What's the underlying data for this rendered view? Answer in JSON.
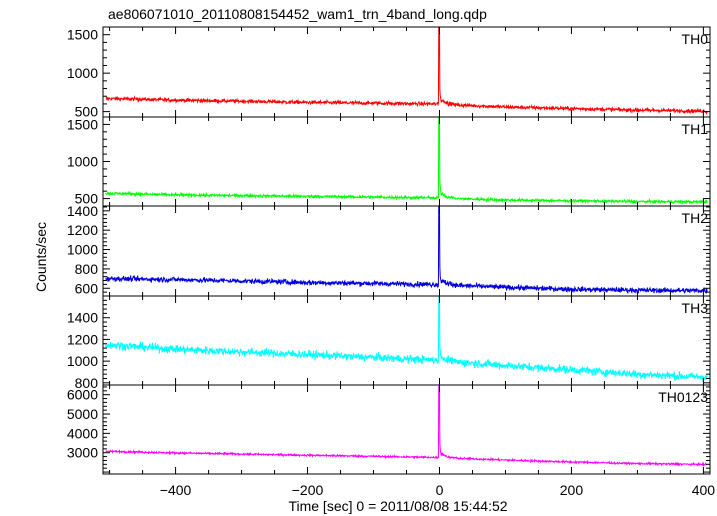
{
  "chart_data": {
    "type": "line",
    "title": "ae806071010_20110808154452_wam1_trn_4band_long.qdp",
    "xlabel": "Time [sec] 0 = 2011/08/08 15:44:52",
    "ylabel": "Counts/sec",
    "xlim": [
      -510,
      410
    ],
    "x_ticks": [
      -400,
      -200,
      0,
      200,
      400
    ],
    "x_tick_labels": [
      "−400",
      "−200",
      "0",
      "200",
      "400"
    ],
    "grid": false,
    "panels": [
      {
        "name": "TH0",
        "color": "#ff0000",
        "ylim": [
          430,
          1600
        ],
        "y_ticks": [
          500,
          1000,
          1500
        ],
        "baseline": [
          [
            -500,
            670
          ],
          [
            -400,
            650
          ],
          [
            -200,
            620
          ],
          [
            -10,
            600
          ],
          [
            100,
            560
          ],
          [
            200,
            540
          ],
          [
            300,
            520
          ],
          [
            410,
            505
          ]
        ],
        "noise": 22,
        "peak": 1600,
        "series": [
          {
            "x": [
              -500,
              -400,
              -200,
              -10,
              0,
              5,
              100,
              200,
              300,
              410
            ],
            "y": [
              670,
              650,
              620,
              600,
              1600,
              650,
              560,
              540,
              520,
              505
            ]
          }
        ]
      },
      {
        "name": "TH1",
        "color": "#00ff00",
        "ylim": [
          400,
          1600
        ],
        "y_ticks": [
          500,
          1000,
          1500
        ],
        "baseline": [
          [
            -500,
            570
          ],
          [
            -400,
            550
          ],
          [
            -200,
            530
          ],
          [
            -10,
            510
          ],
          [
            100,
            480
          ],
          [
            200,
            470
          ],
          [
            300,
            460
          ],
          [
            410,
            455
          ]
        ],
        "noise": 18,
        "peak": 1600,
        "series": [
          {
            "x": [
              -500,
              -400,
              -200,
              -10,
              0,
              5,
              100,
              200,
              300,
              410
            ],
            "y": [
              570,
              550,
              530,
              510,
              1600,
              560,
              480,
              470,
              460,
              455
            ]
          }
        ]
      },
      {
        "name": "TH2",
        "color": "#0000dd",
        "ylim": [
          520,
          1450
        ],
        "y_ticks": [
          600,
          800,
          1000,
          1200,
          1400
        ],
        "baseline": [
          [
            -500,
            700
          ],
          [
            -400,
            690
          ],
          [
            -200,
            660
          ],
          [
            -10,
            640
          ],
          [
            100,
            610
          ],
          [
            200,
            590
          ],
          [
            300,
            580
          ],
          [
            410,
            575
          ]
        ],
        "noise": 25,
        "peak": 1450,
        "series": [
          {
            "x": [
              -500,
              -400,
              -200,
              -10,
              0,
              5,
              100,
              200,
              300,
              410
            ],
            "y": [
              700,
              690,
              660,
              640,
              1450,
              700,
              610,
              590,
              580,
              575
            ]
          }
        ]
      },
      {
        "name": "TH3",
        "color": "#00ffff",
        "ylim": [
          780,
          1600
        ],
        "y_ticks": [
          800,
          1000,
          1200,
          1400
        ],
        "baseline": [
          [
            -500,
            1150
          ],
          [
            -400,
            1110
          ],
          [
            -200,
            1060
          ],
          [
            -10,
            1010
          ],
          [
            100,
            960
          ],
          [
            200,
            920
          ],
          [
            300,
            880
          ],
          [
            410,
            850
          ]
        ],
        "noise": 35,
        "peak": 1600,
        "series": [
          {
            "x": [
              -500,
              -400,
              -200,
              -10,
              0,
              5,
              100,
              200,
              300,
              410
            ],
            "y": [
              1150,
              1110,
              1060,
              1010,
              1600,
              1040,
              960,
              920,
              880,
              850
            ]
          }
        ]
      },
      {
        "name": "TH0123",
        "color": "#ff00ff",
        "ylim": [
          1900,
          6500
        ],
        "y_ticks": [
          3000,
          4000,
          5000,
          6000
        ],
        "baseline": [
          [
            -500,
            3070
          ],
          [
            -400,
            2990
          ],
          [
            -200,
            2870
          ],
          [
            -10,
            2760
          ],
          [
            100,
            2620
          ],
          [
            200,
            2520
          ],
          [
            300,
            2440
          ],
          [
            410,
            2390
          ]
        ],
        "noise": 45,
        "peak": 6500,
        "series": [
          {
            "x": [
              -500,
              -400,
              -200,
              -10,
              0,
              5,
              100,
              200,
              300,
              410
            ],
            "y": [
              3070,
              2990,
              2870,
              2760,
              6500,
              2950,
              2620,
              2520,
              2440,
              2390
            ]
          }
        ]
      }
    ]
  }
}
